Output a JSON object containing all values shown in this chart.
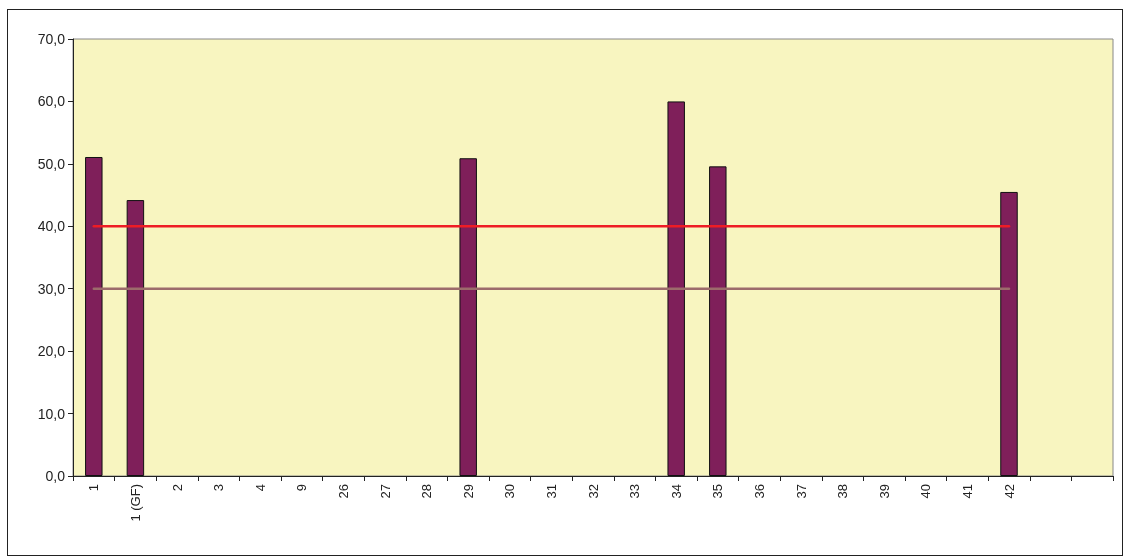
{
  "chart_data": {
    "type": "bar",
    "categories": [
      "1",
      "1 (GF)",
      "2",
      "3",
      "4",
      "9",
      "26",
      "27",
      "28",
      "29",
      "30",
      "31",
      "32",
      "33",
      "34",
      "35",
      "36",
      "37",
      "38",
      "39",
      "40",
      "41",
      "42",
      null,
      null
    ],
    "series": [
      {
        "color": "#7f1f5a",
        "values": [
          51.1,
          44.2,
          null,
          null,
          null,
          null,
          null,
          null,
          null,
          50.9,
          null,
          null,
          null,
          null,
          60.0,
          49.6,
          null,
          null,
          null,
          null,
          null,
          null,
          45.5,
          null,
          null
        ]
      },
      {
        "type": "line",
        "color": "#ee1c25",
        "values": [
          40,
          40,
          40,
          40,
          40,
          40,
          40,
          40,
          40,
          40,
          40,
          40,
          40,
          40,
          40,
          40,
          40,
          40,
          40,
          40,
          40,
          40,
          40,
          null,
          null
        ]
      },
      {
        "type": "line",
        "color": "#9c6b6b",
        "values": [
          30,
          30,
          30,
          30,
          30,
          30,
          30,
          30,
          30,
          30,
          30,
          30,
          30,
          30,
          30,
          30,
          30,
          30,
          30,
          30,
          30,
          30,
          30,
          null,
          null
        ]
      }
    ],
    "ylim": [
      0,
      70
    ],
    "yticks": [
      {
        "value": 0,
        "label": "0,0"
      },
      {
        "value": 10,
        "label": "10,0"
      },
      {
        "value": 20,
        "label": "20,0"
      },
      {
        "value": 30,
        "label": "30,0"
      },
      {
        "value": 40,
        "label": "40,0"
      },
      {
        "value": 50,
        "label": "50,0"
      },
      {
        "value": 60,
        "label": "60,0"
      },
      {
        "value": 70,
        "label": "70,0"
      }
    ],
    "grid": false,
    "marker": "none"
  }
}
